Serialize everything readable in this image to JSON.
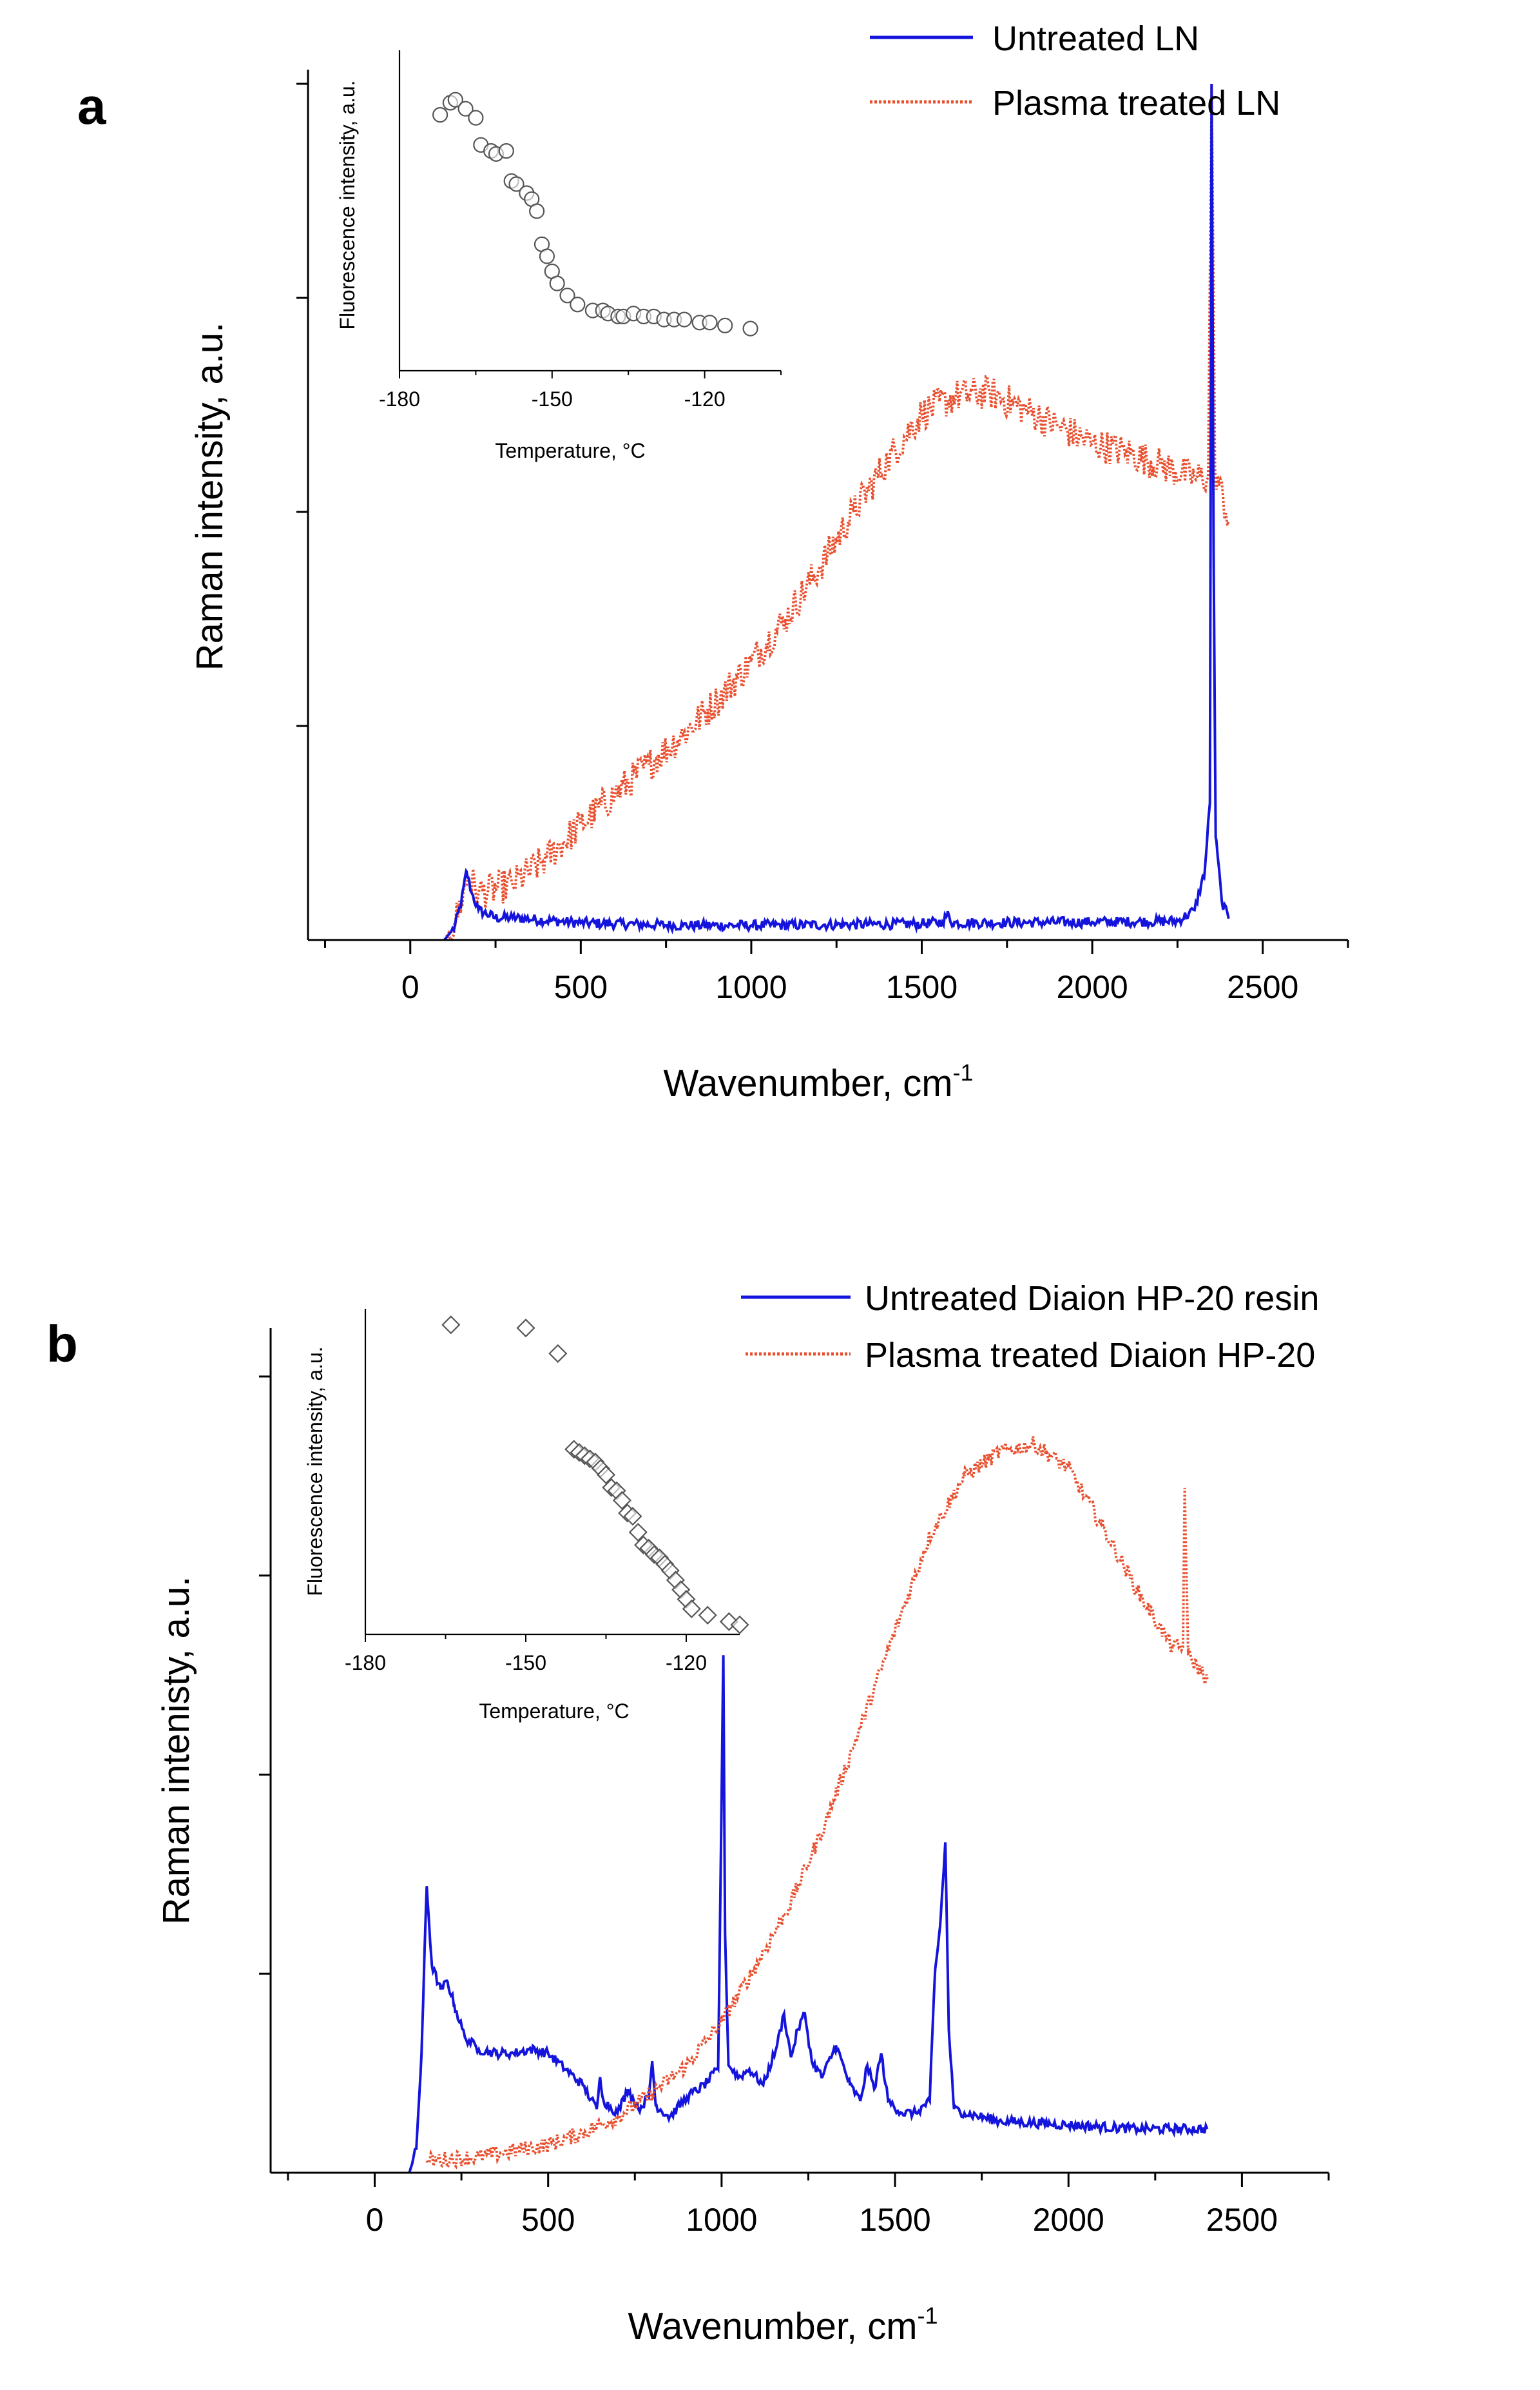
{
  "colors": {
    "untreated": "#1414dc",
    "plasma": "#e8502f",
    "marker": "#555555"
  },
  "chart_data": [
    {
      "panel_label": "a",
      "type": "line",
      "xlabel_main": "Wavenumber, cm",
      "xlabel_sup": "-1",
      "ylabel": "Raman intensity, a.u.",
      "xlim": [
        -300,
        2750
      ],
      "ylim": [
        0,
        100
      ],
      "x_ticks": [
        0,
        500,
        1000,
        1500,
        2000,
        2500
      ],
      "x_tick_labels": [
        "0",
        "500",
        "1000",
        "1500",
        "2000",
        "2500"
      ],
      "y_ticks": [
        25,
        50,
        75,
        100
      ],
      "series": [
        {
          "name": "Untreated LN",
          "color": "#1414dc",
          "style": "solid",
          "noise": 0.6,
          "x": [
            100,
            130,
            150,
            165,
            180,
            200,
            250,
            300,
            500,
            800,
            1000,
            1500,
            1560,
            1575,
            1590,
            2000,
            2250,
            2300,
            2330,
            2345,
            2350,
            2356,
            2362,
            2380,
            2400
          ],
          "y": [
            0,
            1.5,
            4.5,
            8.0,
            5.5,
            3.5,
            2.6,
            2.6,
            2.0,
            1.7,
            1.7,
            1.9,
            2.1,
            3.0,
            2.0,
            2.1,
            2.2,
            3.5,
            8.0,
            16,
            100,
            45,
            12,
            4.5,
            2.5
          ]
        },
        {
          "name": "Plasma treated LN",
          "color": "#e8502f",
          "style": "dotted",
          "noise": 2.0,
          "x": [
            100,
            130,
            150,
            170,
            200,
            300,
            400,
            500,
            600,
            700,
            800,
            900,
            1000,
            1100,
            1200,
            1300,
            1400,
            1500,
            1600,
            1700,
            1800,
            1900,
            2000,
            2100,
            2200,
            2300,
            2340,
            2350,
            2360,
            2400
          ],
          "y": [
            0,
            2,
            4.5,
            7.5,
            5.5,
            6.5,
            9.5,
            13.5,
            17,
            20.5,
            24,
            28,
            32.5,
            37.5,
            43.5,
            50,
            56,
            61.5,
            63.5,
            64,
            62,
            60,
            58,
            57,
            55.5,
            54,
            54,
            100,
            55,
            49
          ]
        }
      ],
      "inset": {
        "type": "scatter",
        "marker": "circle",
        "xlabel_main": "Temperature, ",
        "xlabel_unit": "°C",
        "ylabel": "Fluorescence intensity, a.u.",
        "xlim": [
          -180,
          -105
        ],
        "ylim": [
          0,
          100
        ],
        "x_ticks": [
          -180,
          -150,
          -120
        ],
        "x_tick_labels": [
          "-180",
          "-150",
          "-120"
        ],
        "x": [
          -172,
          -170,
          -169,
          -167,
          -165,
          -164,
          -162,
          -161,
          -159,
          -158,
          -157,
          -155,
          -154,
          -153,
          -152,
          -151,
          -150,
          -149,
          -147,
          -145,
          -142,
          -140,
          -139,
          -137,
          -136,
          -134,
          -132,
          -130,
          -128,
          -126,
          -124,
          -121,
          -119,
          -116,
          -111
        ],
        "y": [
          85,
          89,
          90,
          87,
          84,
          75,
          73,
          72,
          73,
          63,
          62,
          59,
          57,
          53,
          42,
          38,
          33,
          29,
          25,
          22,
          20,
          20,
          19,
          18,
          18,
          19,
          18,
          18,
          17,
          17,
          17,
          16,
          16,
          15,
          14
        ]
      }
    },
    {
      "panel_label": "b",
      "type": "line",
      "xlabel_main": "Wavenumber, cm",
      "xlabel_sup": "-1",
      "ylabel": "Raman intenisty, a.u.",
      "xlim": [
        -300,
        2750
      ],
      "ylim": [
        0,
        100
      ],
      "x_ticks": [
        0,
        500,
        1000,
        1500,
        2000,
        2500
      ],
      "x_tick_labels": [
        "0",
        "500",
        "1000",
        "1500",
        "2000",
        "2500"
      ],
      "y_ticks": [
        25,
        50,
        75,
        100
      ],
      "series": [
        {
          "name": "Untreated Diaion HP-20 resin",
          "color": "#1414dc",
          "style": "solid",
          "noise": 0.6,
          "x": [
            100,
            120,
            135,
            150,
            165,
            190,
            210,
            230,
            260,
            300,
            350,
            400,
            450,
            500,
            550,
            600,
            640,
            650,
            660,
            700,
            730,
            760,
            790,
            800,
            810,
            850,
            900,
            950,
            990,
            1000,
            1005,
            1010,
            1020,
            1050,
            1080,
            1120,
            1160,
            1180,
            1200,
            1220,
            1240,
            1260,
            1290,
            1330,
            1370,
            1400,
            1420,
            1440,
            1460,
            1480,
            1520,
            1560,
            1600,
            1615,
            1630,
            1645,
            1655,
            1670,
            1700,
            1800,
            2000,
            2200,
            2400
          ],
          "y": [
            0,
            3,
            15,
            36,
            26,
            23,
            24,
            21,
            17,
            15.5,
            15,
            15,
            15.5,
            15,
            13,
            11,
            8,
            12,
            9,
            7.5,
            10.5,
            8,
            9.5,
            14,
            8.5,
            7,
            9.5,
            11,
            13,
            47,
            65,
            30,
            13.5,
            12,
            13,
            11,
            16,
            20,
            14.5,
            18,
            20,
            14,
            12,
            16,
            11,
            9,
            13.5,
            10.5,
            15,
            9,
            7.5,
            7.5,
            9,
            25,
            31,
            41.5,
            18,
            8,
            7.5,
            6.5,
            6,
            5.5,
            5.5
          ]
        },
        {
          "name": "Plasma treated Diaion HP-20",
          "color": "#e8502f",
          "style": "dotted",
          "noise": 1.0,
          "x": [
            150,
            300,
            500,
            600,
            700,
            800,
            900,
            1000,
            1100,
            1200,
            1300,
            1400,
            1500,
            1600,
            1700,
            1800,
            1900,
            2000,
            2100,
            2200,
            2300,
            2330,
            2335,
            2345,
            2400
          ],
          "y": [
            1.5,
            2,
            3.5,
            5,
            7,
            10,
            13.5,
            19,
            26,
            34,
            44,
            56,
            68,
            80,
            87.5,
            90.5,
            91.5,
            88.5,
            81,
            73,
            66,
            66,
            86,
            65,
            62
          ]
        }
      ],
      "inset": {
        "type": "scatter",
        "marker": "diamond",
        "xlabel_main": "Temperature, ",
        "xlabel_unit": "°C",
        "ylabel": "Fluorescence intensity, a.u.",
        "xlim": [
          -180,
          -110
        ],
        "ylim": [
          0,
          100
        ],
        "x_ticks": [
          -180,
          -150,
          -120
        ],
        "x_tick_labels": [
          "-180",
          "-150",
          "-120"
        ],
        "x": [
          -164,
          -150,
          -144,
          -141,
          -140,
          -139,
          -138,
          -137,
          -136,
          -135,
          -134,
          -133,
          -132,
          -131,
          -130,
          -129,
          -128,
          -127,
          -126,
          -125,
          -124,
          -123,
          -122,
          -121,
          -120,
          -119,
          -116,
          -112,
          -110
        ],
        "y": [
          97,
          96,
          88,
          58,
          57,
          56,
          55,
          54,
          52,
          50,
          46,
          45,
          42,
          38,
          37,
          32,
          28,
          27,
          25,
          24,
          22,
          20,
          17,
          14,
          11,
          8,
          6,
          4,
          3
        ]
      }
    }
  ]
}
